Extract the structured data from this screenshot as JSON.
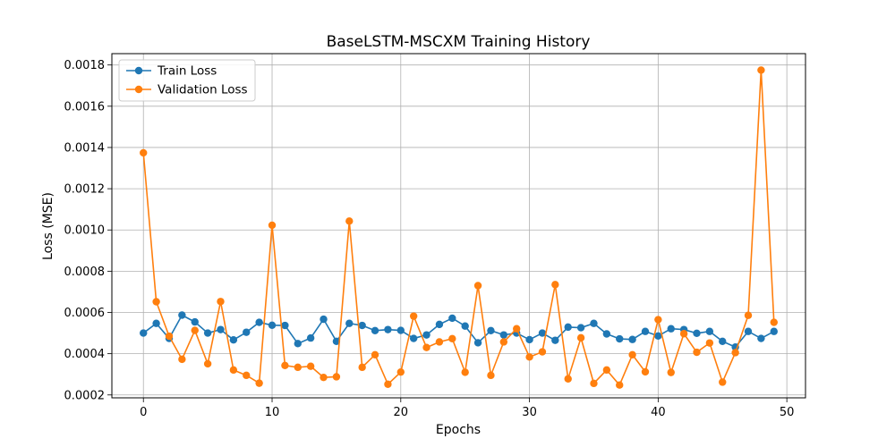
{
  "chart_data": {
    "type": "line",
    "title": "BaseLSTM-MSCXM Training History",
    "xlabel": "Epochs",
    "ylabel": "Loss (MSE)",
    "xlim": [
      -2.45,
      51.45
    ],
    "ylim": [
      0.000186,
      0.001855
    ],
    "xticks": [
      0,
      10,
      20,
      30,
      40,
      50
    ],
    "yticks": [
      0.0002,
      0.0004,
      0.0006,
      0.0008,
      0.001,
      0.0012,
      0.0014,
      0.0016,
      0.0018
    ],
    "ytick_labels": [
      "0.0002",
      "0.0004",
      "0.0006",
      "0.0008",
      "0.0010",
      "0.0012",
      "0.0014",
      "0.0016",
      "0.0018"
    ],
    "grid": true,
    "legend_position": "upper-left",
    "x": [
      0,
      1,
      2,
      3,
      4,
      5,
      6,
      7,
      8,
      9,
      10,
      11,
      12,
      13,
      14,
      15,
      16,
      17,
      18,
      19,
      20,
      21,
      22,
      23,
      24,
      25,
      26,
      27,
      28,
      29,
      30,
      31,
      32,
      33,
      34,
      35,
      36,
      37,
      38,
      39,
      40,
      41,
      42,
      43,
      44,
      45,
      46,
      47,
      48,
      49
    ],
    "series": [
      {
        "name": "Train Loss",
        "color": "#1f77b4",
        "values": [
          0.0005,
          0.000547,
          0.000474,
          0.000587,
          0.000554,
          0.0005,
          0.000517,
          0.000467,
          0.000504,
          0.000552,
          0.000538,
          0.000537,
          0.000449,
          0.000476,
          0.000567,
          0.00046,
          0.000547,
          0.000537,
          0.000512,
          0.000517,
          0.000513,
          0.000474,
          0.000491,
          0.000542,
          0.000572,
          0.000534,
          0.000453,
          0.000512,
          0.000491,
          0.0005,
          0.000468,
          0.0005,
          0.000465,
          0.000529,
          0.000526,
          0.000547,
          0.000496,
          0.000472,
          0.000469,
          0.000508,
          0.000486,
          0.000521,
          0.000517,
          0.000499,
          0.000508,
          0.00046,
          0.000432,
          0.000508,
          0.000474,
          0.000508
        ]
      },
      {
        "name": "Validation Loss",
        "color": "#ff7f0e",
        "values": [
          0.001374,
          0.000652,
          0.000485,
          0.000373,
          0.000513,
          0.000351,
          0.000653,
          0.000321,
          0.000295,
          0.000257,
          0.001023,
          0.000343,
          0.000334,
          0.000339,
          0.000285,
          0.000288,
          0.001043,
          0.000334,
          0.000395,
          0.000252,
          0.000311,
          0.000582,
          0.00043,
          0.000457,
          0.000473,
          0.00031,
          0.00073,
          0.000295,
          0.000457,
          0.000521,
          0.000384,
          0.000409,
          0.000735,
          0.000278,
          0.000477,
          0.000256,
          0.000321,
          0.000248,
          0.000395,
          0.000312,
          0.000565,
          0.000309,
          0.000497,
          0.000407,
          0.000452,
          0.000262,
          0.000405,
          0.000586,
          0.001775,
          0.000552
        ]
      }
    ]
  }
}
